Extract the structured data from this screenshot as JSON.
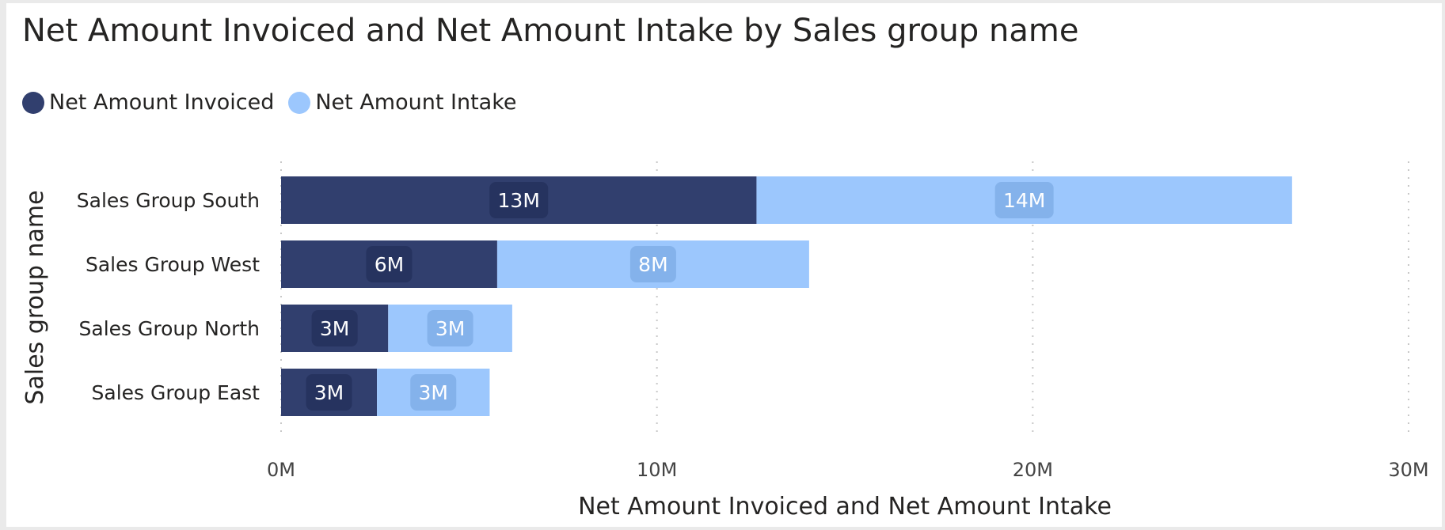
{
  "chart_data": {
    "type": "bar",
    "orientation": "horizontal",
    "stacked": true,
    "title": "Net Amount Invoiced and Net Amount Intake by Sales group name",
    "xlabel": "Net Amount Invoiced and Net Amount Intake",
    "ylabel": "Sales group name",
    "categories": [
      "Sales Group South",
      "Sales Group West",
      "Sales Group North",
      "Sales Group East"
    ],
    "series": [
      {
        "name": "Net Amount Invoiced",
        "color": "#313f6e",
        "values": [
          12.65,
          5.75,
          2.85,
          2.55
        ],
        "labels": [
          "13M",
          "6M",
          "3M",
          "3M"
        ]
      },
      {
        "name": "Net Amount Intake",
        "color": "#9cc7fd",
        "values": [
          14.25,
          8.3,
          3.3,
          3.0
        ],
        "labels": [
          "14M",
          "8M",
          "3M",
          "3M"
        ]
      }
    ],
    "xlim": [
      0,
      30
    ],
    "xticks": [
      0,
      10,
      20,
      30
    ],
    "xtick_labels": [
      "0M",
      "10M",
      "20M",
      "30M"
    ],
    "grid": true,
    "legend": "top-left"
  }
}
